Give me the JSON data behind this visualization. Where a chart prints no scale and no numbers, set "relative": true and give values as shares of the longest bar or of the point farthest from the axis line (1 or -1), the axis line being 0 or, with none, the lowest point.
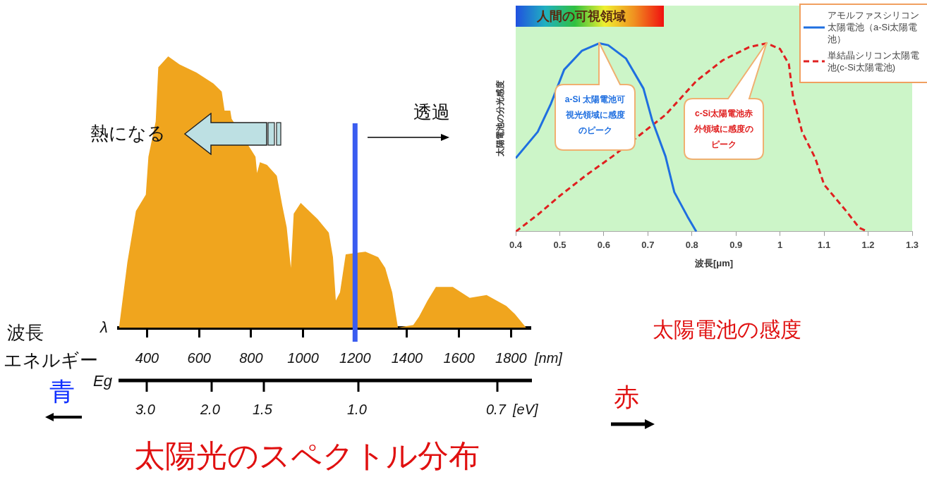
{
  "chart_data": [
    {
      "type": "area",
      "title": "太陽光のスペクトル分布",
      "xlabel": "[nm]",
      "relative": true,
      "color": "#f0a51e",
      "legend": false,
      "marker": "none",
      "x": [
        292,
        324,
        357,
        395,
        405,
        433,
        443,
        481,
        525,
        590,
        655,
        687,
        698,
        720,
        725,
        785,
        817,
        823,
        834,
        861,
        899,
        920,
        937,
        953,
        964,
        991,
        1056,
        1099,
        1115,
        1126,
        1142,
        1164,
        1240,
        1289,
        1316,
        1343,
        1365,
        1424,
        1446,
        1479,
        1511,
        1576,
        1641,
        1706,
        1782,
        1815,
        1858
      ],
      "values": [
        0,
        0.24,
        0.43,
        0.49,
        0.63,
        0.76,
        0.96,
        1,
        0.97,
        0.94,
        0.9,
        0.87,
        0.8,
        0.8,
        0.77,
        null,
        0.63,
        0.57,
        0.61,
        0.6,
        0.56,
        0.45,
        0.37,
        0.22,
        0.42,
        0.46,
        0.4,
        0.35,
        0.26,
        0.1,
        0.13,
        0.27,
        0.28,
        0.26,
        0.22,
        0.13,
        0,
        0.01,
        0.04,
        0.1,
        0.15,
        0.15,
        0.11,
        0.12,
        0.08,
        0.05,
        0
      ],
      "xlim": [
        290,
        1875
      ],
      "xticks": [
        400,
        600,
        800,
        1000,
        1200,
        1400,
        1600,
        1800
      ],
      "ref_lines": [
        {
          "axis": "x",
          "value": 1200,
          "color": "#3a5cf0"
        }
      ],
      "annotations": [
        "λ",
        "Eg",
        "波長",
        "エネルギー",
        "熱になる",
        "透過",
        "青",
        "赤",
        "3.0",
        "2.0",
        "1.5",
        "1.0",
        "0.7",
        "[eV]"
      ]
    },
    {
      "type": "line",
      "title": "太陽電池の感度",
      "xlabel": "波長[μm]",
      "ylabel": "太陽電池の分光感度",
      "relative": true,
      "legend": "top right",
      "marker": "none",
      "xlim": [
        0.4,
        1.3
      ],
      "xticks": [
        0.4,
        0.5,
        0.6,
        0.7,
        0.8,
        0.9,
        1,
        1.1,
        1.2,
        1.3
      ],
      "series": [
        {
          "name": "アモルファスシリコン太陽電池（a-Si太陽電池）",
          "color": "#1f6fe0",
          "line_style": "solid",
          "x": [
            0.4,
            0.45,
            0.48,
            0.51,
            0.55,
            0.59,
            0.61,
            0.65,
            0.69,
            0.71,
            0.74,
            0.76,
            0.79,
            0.81
          ],
          "values": [
            0.39,
            0.53,
            0.68,
            0.86,
            0.96,
            1,
            0.99,
            0.92,
            0.76,
            0.59,
            0.4,
            0.21,
            0.08,
            0
          ]
        },
        {
          "name": "単結晶シリコン太陽電池(c-Si太陽電池)",
          "color": "#e02020",
          "line_style": "dashed",
          "x": [
            0.4,
            0.45,
            0.5,
            0.56,
            0.62,
            0.68,
            0.74,
            0.81,
            0.87,
            0.93,
            0.97,
            1,
            1.02,
            1.03,
            1.05,
            1.08,
            1.1,
            1.15,
            1.18,
            1.2
          ],
          "values": [
            0,
            0.09,
            0.19,
            0.3,
            0.4,
            0.51,
            0.62,
            0.8,
            0.91,
            0.98,
            1,
            0.97,
            0.89,
            0.71,
            0.53,
            0.39,
            0.25,
            0.11,
            0.02,
            0
          ]
        }
      ],
      "annotations": [
        "人間の可視領域",
        "a-Si 太陽電池可視光領域に感度のピーク",
        "c-Si太陽電池赤外領域に感度のピーク"
      ]
    }
  ]
}
